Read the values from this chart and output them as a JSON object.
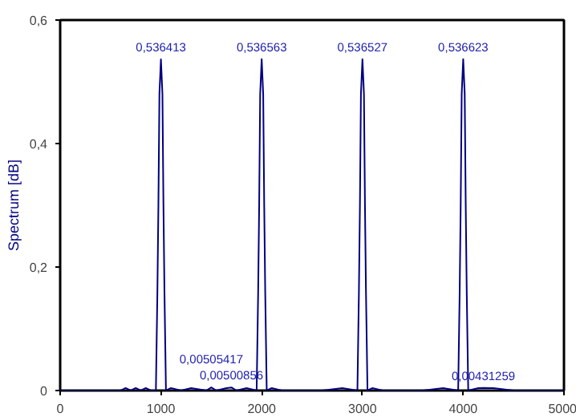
{
  "chart_data": {
    "type": "line",
    "ylabel": "Spectrum [dB]",
    "x": [
      0,
      600,
      650,
      700,
      750,
      800,
      850,
      900,
      950,
      965,
      975,
      985,
      1000,
      1015,
      1025,
      1035,
      1050,
      1100,
      1200,
      1300,
      1450,
      1500,
      1550,
      1650,
      1700,
      1750,
      1850,
      1950,
      1965,
      1975,
      1985,
      2000,
      2015,
      2025,
      2035,
      2050,
      2100,
      2200,
      2400,
      2600,
      2800,
      2950,
      2965,
      2975,
      2985,
      3000,
      3015,
      3025,
      3035,
      3050,
      3100,
      3200,
      3400,
      3600,
      3800,
      3950,
      3965,
      3975,
      3985,
      4000,
      4015,
      4025,
      4035,
      4050,
      4150,
      4200,
      4300,
      4500,
      5000
    ],
    "series": [
      {
        "color": "#000080",
        "values": [
          0,
          0,
          0.004,
          0,
          0.004,
          0,
          0.004,
          0,
          0,
          0.16,
          0.3,
          0.48,
          0.536413,
          0.48,
          0.3,
          0.16,
          0,
          0.004,
          0,
          0.004,
          0,
          0.00505417,
          0,
          0.004,
          0.00500856,
          0,
          0.004,
          0,
          0.16,
          0.3,
          0.48,
          0.536563,
          0.48,
          0.3,
          0.16,
          0,
          0.004,
          0,
          0,
          0,
          0.004,
          0,
          0.16,
          0.3,
          0.48,
          0.536527,
          0.48,
          0.3,
          0.16,
          0,
          0.004,
          0,
          0,
          0,
          0.004,
          0,
          0.16,
          0.3,
          0.48,
          0.536623,
          0.48,
          0.3,
          0.16,
          0,
          0.004,
          0.00431259,
          0.004,
          0,
          0
        ]
      }
    ],
    "annotations": [
      {
        "text": "0,536413",
        "x": 1000,
        "y": 0.536413
      },
      {
        "text": "0,536563",
        "x": 2000,
        "y": 0.536563
      },
      {
        "text": "0,536527",
        "x": 3000,
        "y": 0.536527
      },
      {
        "text": "0,536623",
        "x": 4000,
        "y": 0.536623
      },
      {
        "text": "0,00500856",
        "x": 1700,
        "y": 0.00500856
      },
      {
        "text": "0,00505417",
        "x": 1500,
        "y": 0.00505417
      },
      {
        "text": "0,00431259",
        "x": 4200,
        "y": 0.00431259
      }
    ],
    "xlim": [
      0,
      5000
    ],
    "ylim": [
      0,
      0.6
    ],
    "xticks": [
      0,
      1000,
      2000,
      3000,
      4000,
      5000
    ],
    "yticks": [
      0,
      {
        "value": 0.2,
        "label": "0,2"
      },
      {
        "value": 0.4,
        "label": "0,4"
      },
      {
        "value": 0.6,
        "label": "0,6"
      }
    ],
    "grid": false,
    "marker": "none",
    "line_style": "solid"
  }
}
